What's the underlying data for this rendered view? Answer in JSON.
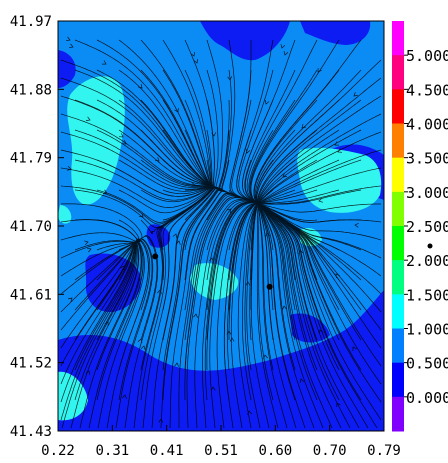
{
  "chart_data": {
    "type": "heatmap",
    "title": "",
    "xlabel": "",
    "ylabel": "",
    "x_ticks": [
      "0.22",
      "0.31",
      "0.41",
      "0.51",
      "0.60",
      "0.70",
      "0.79"
    ],
    "y_ticks": [
      "41.97",
      "41.88",
      "41.79",
      "41.70",
      "41.61",
      "41.52",
      "41.43"
    ],
    "xlim": [
      0.22,
      0.79
    ],
    "ylim": [
      41.43,
      41.97
    ],
    "colorbar": {
      "labels": [
        "5.000",
        "4.500",
        "4.000",
        "3.500",
        "3.000",
        "2.500",
        "2.000",
        "1.500",
        "1.000",
        "0.500",
        "0.000"
      ],
      "label_values": [
        5.0,
        4.5,
        4.0,
        3.5,
        3.0,
        2.5,
        2.0,
        1.5,
        1.0,
        0.5,
        0.0
      ],
      "colors_top_to_bottom": [
        "#ff00ff",
        "#ff0080",
        "#ff0000",
        "#ff8000",
        "#ffff00",
        "#80ff00",
        "#00ff00",
        "#00ff80",
        "#00ffff",
        "#0080ff",
        "#0000ff",
        "#8000ff"
      ]
    },
    "field": {
      "background_color": "#0b8cf5",
      "low_color": "#0c1cf2",
      "high_color": "#33f5f0",
      "dominant_range": [
        0.0,
        1.5
      ]
    },
    "overlay": "streamlines",
    "markers": [
      {
        "x": 0.39,
        "y": 41.66
      },
      {
        "x": 0.59,
        "y": 41.62
      }
    ]
  }
}
